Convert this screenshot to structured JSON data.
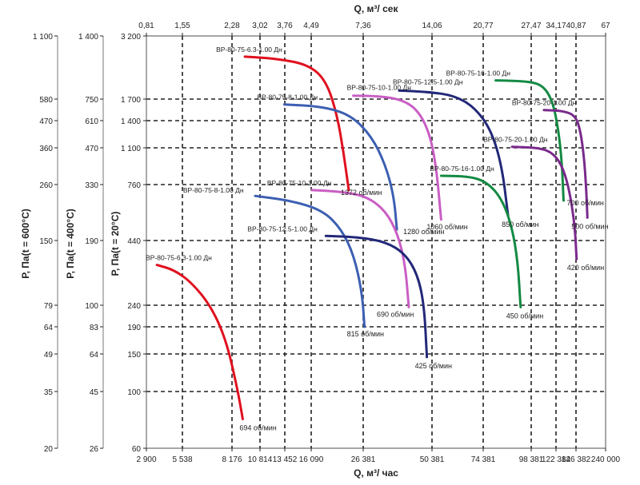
{
  "chart_data": {
    "type": "line",
    "title": "",
    "x_axis_top": {
      "label": "Q, м³/ сек",
      "tick_labels": [
        "0,81",
        "1,55",
        "2,28",
        "3,02",
        "3,76",
        "4,49",
        "7,36",
        "14,06",
        "20,77",
        "27,47",
        "34,17",
        "40,87",
        "67"
      ]
    },
    "x_axis_bottom": {
      "label": "Q, м³/ час",
      "tick_labels": [
        "2 900",
        "5 538",
        "8 176",
        "10 814",
        "13 452",
        "16 090",
        "26 381",
        "50 381",
        "74 381",
        "98 381",
        "122 382",
        "146 382",
        "240 000"
      ]
    },
    "y_axes": [
      {
        "label": "Р, Па(t = 600°C)",
        "tick_labels": [
          "1 100",
          "580",
          "470",
          "360",
          "260",
          "150",
          "79",
          "64",
          "49",
          "35",
          "20"
        ]
      },
      {
        "label": "Р, Па(t = 400°C)",
        "tick_labels": [
          "1 400",
          "750",
          "610",
          "470",
          "330",
          "190",
          "100",
          "83",
          "64",
          "45",
          "26"
        ]
      },
      {
        "label": "Р, Па(t = 20°C)",
        "tick_labels": [
          "3 200",
          "1 700",
          "1 400",
          "1 100",
          "760",
          "440",
          "240",
          "190",
          "150",
          "100",
          "60"
        ]
      }
    ],
    "grid": true,
    "series": [
      {
        "name": "ВР-80-75-6.3-1.00 Дн",
        "color": "#e0101e",
        "rpm_label": "694 об/мин",
        "points": [
          [
            3500,
            350
          ],
          [
            4700,
            335
          ],
          [
            5900,
            300
          ],
          [
            6900,
            240
          ],
          [
            7800,
            170
          ],
          [
            8600,
            105
          ],
          [
            9100,
            78
          ]
        ]
      },
      {
        "name": "ВР-80-75-6.3-1.00 Дн",
        "color": "#e0101e",
        "rpm_label": "1372 об/мин",
        "points": [
          [
            9300,
            2600
          ],
          [
            12500,
            2550
          ],
          [
            15800,
            2400
          ],
          [
            18500,
            2050
          ],
          [
            20500,
            1500
          ],
          [
            21900,
            1050
          ],
          [
            23000,
            720
          ]
        ]
      },
      {
        "name": "ВР-80-75-8-1.00 Дн",
        "color": "#3c5fb2",
        "rpm_label": "815 об/мин",
        "points": [
          [
            10300,
            680
          ],
          [
            14000,
            650
          ],
          [
            18000,
            590
          ],
          [
            21500,
            490
          ],
          [
            24200,
            380
          ],
          [
            26100,
            270
          ],
          [
            26700,
            190
          ]
        ]
      },
      {
        "name": "ВР-80-75-8-1.00 Дн",
        "color": "#3c5fb2",
        "rpm_label": "1280 об/мин",
        "points": [
          [
            13400,
            1620
          ],
          [
            18000,
            1590
          ],
          [
            23500,
            1470
          ],
          [
            28500,
            1220
          ],
          [
            32500,
            930
          ],
          [
            35200,
            680
          ],
          [
            36200,
            490
          ]
        ]
      },
      {
        "name": "ВР-80-75-10-1.00 Дн",
        "color": "#c95ec4",
        "rpm_label": "690 об/мин",
        "points": [
          [
            16200,
            720
          ],
          [
            21000,
            710
          ],
          [
            27000,
            680
          ],
          [
            32500,
            590
          ],
          [
            36500,
            470
          ],
          [
            39200,
            350
          ],
          [
            40500,
            235
          ]
        ]
      },
      {
        "name": "ВР-80-75-10-1.00 Дн",
        "color": "#c95ec4",
        "rpm_label": "1060 об/мин",
        "points": [
          [
            24000,
            1760
          ],
          [
            31000,
            1750
          ],
          [
            38000,
            1690
          ],
          [
            44000,
            1540
          ],
          [
            49000,
            1270
          ],
          [
            52000,
            920
          ],
          [
            54000,
            540
          ]
        ]
      },
      {
        "name": "ВР-80-75-12.5-1.00 Дн",
        "color": "#222878",
        "rpm_label": "425 об/мин",
        "points": [
          [
            18500,
            460
          ],
          [
            25000,
            455
          ],
          [
            32500,
            435
          ],
          [
            39000,
            390
          ],
          [
            44000,
            320
          ],
          [
            46800,
            240
          ],
          [
            48000,
            145
          ]
        ]
      },
      {
        "name": "ВР-80-75-12.5-1.00 Дн",
        "color": "#222878",
        "rpm_label": "850 об/мин",
        "points": [
          [
            37000,
            1850
          ],
          [
            48000,
            1830
          ],
          [
            60000,
            1760
          ],
          [
            70000,
            1570
          ],
          [
            78000,
            1280
          ],
          [
            83000,
            910
          ],
          [
            86000,
            560
          ]
        ]
      },
      {
        "name": "ВР-80-75-16-1.00 Дн",
        "color": "#138a43",
        "rpm_label": "450 об/мин",
        "points": [
          [
            54000,
            830
          ],
          [
            67000,
            825
          ],
          [
            76000,
            780
          ],
          [
            83000,
            660
          ],
          [
            88000,
            500
          ],
          [
            91000,
            360
          ],
          [
            92500,
            235
          ]
        ]
      },
      {
        "name": "ВР-80-75-16-1.00 Дн",
        "color": "#138a43",
        "rpm_label": "700 об/мин",
        "points": [
          [
            80000,
            2050
          ],
          [
            98000,
            2030
          ],
          [
            110000,
            1930
          ],
          [
            119000,
            1660
          ],
          [
            125000,
            1290
          ],
          [
            129000,
            950
          ],
          [
            131000,
            650
          ]
        ]
      },
      {
        "name": "ВР-80-75-20-1.00 Дн",
        "color": "#7a2a8c",
        "rpm_label": "420 об/мин",
        "points": [
          [
            88000,
            1110
          ],
          [
            106000,
            1100
          ],
          [
            120000,
            1040
          ],
          [
            131000,
            890
          ],
          [
            139000,
            690
          ],
          [
            145000,
            500
          ],
          [
            148000,
            370
          ]
        ]
      },
      {
        "name": "ВР-80-75-20-1.00 Дн",
        "color": "#7a2a8c",
        "rpm_label": "500 об/мин",
        "points": [
          [
            110000,
            1540
          ],
          [
            131000,
            1530
          ],
          [
            146000,
            1460
          ],
          [
            158000,
            1270
          ],
          [
            167000,
            1010
          ],
          [
            173000,
            760
          ],
          [
            177000,
            550
          ]
        ]
      }
    ]
  }
}
